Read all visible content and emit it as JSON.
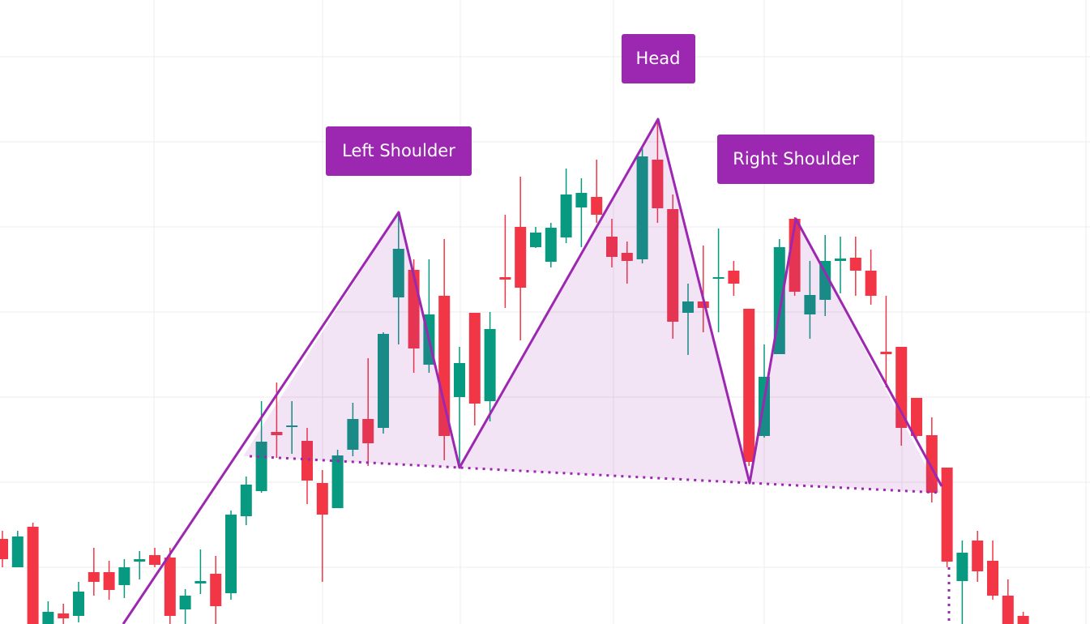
{
  "chart_data": {
    "type": "candlestick",
    "annotations": [
      "Left Shoulder",
      "Head",
      "Right Shoulder"
    ],
    "up_color": "#089981",
    "down_color": "#f23645",
    "ylim": [
      0,
      770
    ],
    "open": [
      105,
      70,
      120,
      0,
      13,
      10,
      64,
      64,
      48,
      77,
      85,
      82,
      18,
      50,
      62,
      38,
      133,
      164,
      237,
      243,
      226,
      174,
      143,
      215,
      253,
      242,
      403,
      437,
      320,
      405,
      280,
      384,
      275,
      428,
      490,
      465,
      447,
      477,
      514,
      527,
      478,
      458,
      450,
      573,
      512,
      384,
      398,
      426,
      436,
      389,
      232,
      333,
      500,
      382,
      400,
      448,
      452,
      436,
      336,
      342,
      279,
      233,
      193,
      53,
      103,
      78,
      35,
      10
    ],
    "high": [
      115,
      115,
      125,
      28,
      25,
      52,
      94,
      78,
      80,
      90,
      94,
      94,
      43,
      92,
      84,
      140,
      182,
      275,
      298,
      275,
      242,
      190,
      215,
      273,
      328,
      360,
      508,
      450,
      450,
      475,
      342,
      384,
      385,
      505,
      552,
      490,
      495,
      562,
      550,
      573,
      500,
      472,
      590,
      620,
      530,
      420,
      467,
      488,
      448,
      389,
      345,
      475,
      502,
      448,
      480,
      478,
      478,
      462,
      405,
      342,
      279,
      255,
      193,
      103,
      115,
      103,
      55,
      15
    ],
    "low": [
      70,
      70,
      0,
      0,
      0,
      2,
      35,
      30,
      32,
      55,
      70,
      0,
      0,
      37,
      0,
      30,
      122,
      162,
      205,
      210,
      148,
      52,
      143,
      207,
      195,
      235,
      345,
      310,
      310,
      202,
      195,
      245,
      250,
      390,
      350,
      464,
      440,
      470,
      465,
      495,
      440,
      420,
      445,
      495,
      352,
      332,
      360,
      360,
      405,
      195,
      230,
      333,
      405,
      352,
      380,
      408,
      405,
      394,
      292,
      220,
      230,
      150,
      70,
      0,
      52,
      30,
      0,
      0
    ],
    "close": [
      80,
      108,
      0,
      15,
      7,
      40,
      52,
      42,
      70,
      80,
      73,
      10,
      35,
      53,
      22,
      135,
      172,
      225,
      233,
      245,
      177,
      135,
      208,
      253,
      223,
      358,
      463,
      340,
      382,
      232,
      322,
      272,
      364,
      425,
      415,
      483,
      489,
      530,
      532,
      505,
      453,
      448,
      577,
      513,
      373,
      398,
      390,
      428,
      420,
      200,
      305,
      465,
      410,
      406,
      448,
      451,
      436,
      405,
      333,
      242,
      232,
      162,
      77,
      88,
      65,
      35,
      0,
      0
    ]
  }
}
